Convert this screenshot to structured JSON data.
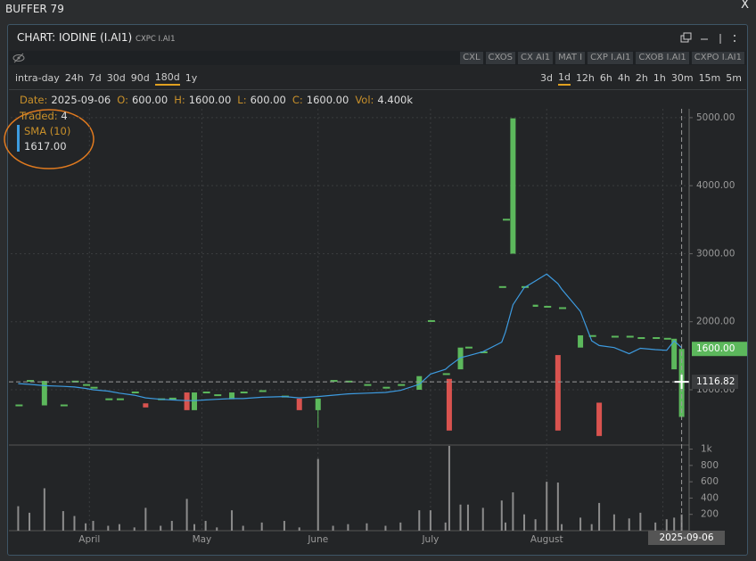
{
  "window": {
    "title": "BUFFER 79",
    "close": "X"
  },
  "panel": {
    "title": "CHART: IODINE (I.AI1)",
    "subtitle": "CXPC I.AI1"
  },
  "toolbar": {
    "buttons": [
      "CXL",
      "CXOS",
      "CX AI1",
      "MAT I",
      "CXP I.AI1",
      "CXOB I.AI1",
      "CXPO I.AI1"
    ]
  },
  "ranges": {
    "items": [
      "intra-day",
      "24h",
      "7d",
      "30d",
      "90d",
      "180d",
      "1y"
    ],
    "active": 5
  },
  "intervals": {
    "items": [
      "3d",
      "1d",
      "12h",
      "6h",
      "4h",
      "2h",
      "1h",
      "30m",
      "15m",
      "5m"
    ],
    "active": 1
  },
  "info": {
    "fields": [
      {
        "label": "Date:",
        "value": "2025-09-06"
      },
      {
        "label": "O:",
        "value": "600.00"
      },
      {
        "label": "H:",
        "value": "1600.00"
      },
      {
        "label": "L:",
        "value": "600.00"
      },
      {
        "label": "C:",
        "value": "1600.00"
      },
      {
        "label": "Vol:",
        "value": "4.400k"
      }
    ],
    "traded": {
      "label": "Traded:",
      "value": "4"
    }
  },
  "chart_data": {
    "type": "candlestick",
    "x": [
      "2025-03-13",
      "2025-03-16",
      "2025-03-20",
      "2025-03-25",
      "2025-03-28",
      "2025-03-31",
      "2025-04-02",
      "2025-04-06",
      "2025-04-09",
      "2025-04-13",
      "2025-04-16",
      "2025-04-20",
      "2025-04-23",
      "2025-04-27",
      "2025-04-29",
      "2025-05-02",
      "2025-05-05",
      "2025-05-09",
      "2025-05-12",
      "2025-05-17",
      "2025-05-23",
      "2025-05-27",
      "2025-06-01",
      "2025-06-05",
      "2025-06-09",
      "2025-06-14",
      "2025-06-19",
      "2025-06-23",
      "2025-06-28",
      "2025-07-01",
      "2025-07-05",
      "2025-07-06",
      "2025-07-09",
      "2025-07-11",
      "2025-07-15",
      "2025-07-20",
      "2025-07-21",
      "2025-07-23",
      "2025-07-26",
      "2025-07-29",
      "2025-08-01",
      "2025-08-04",
      "2025-08-05",
      "2025-08-10",
      "2025-08-13",
      "2025-08-15",
      "2025-08-19",
      "2025-08-23",
      "2025-08-26",
      "2025-08-30",
      "2025-09-02",
      "2025-09-04",
      "2025-09-06"
    ],
    "open": [
      770,
      1130,
      770,
      770,
      1120,
      1070,
      1030,
      860,
      860,
      960,
      800,
      860,
      870,
      960,
      700,
      960,
      920,
      860,
      960,
      980,
      900,
      870,
      700,
      1130,
      1120,
      1070,
      1030,
      1070,
      1000,
      2010,
      1230,
      1160,
      1300,
      1620,
      1550,
      2510,
      3500,
      3000,
      2510,
      2220,
      2220,
      1510,
      2200,
      1620,
      1790,
      810,
      1780,
      1780,
      1760,
      1760,
      1750,
      1300,
      600
    ],
    "high": [
      770,
      1130,
      1130,
      770,
      1120,
      1070,
      1030,
      860,
      860,
      960,
      800,
      860,
      870,
      960,
      960,
      960,
      920,
      960,
      960,
      980,
      900,
      870,
      870,
      1130,
      1120,
      1070,
      1030,
      1070,
      1200,
      2010,
      1230,
      1160,
      1620,
      1620,
      1550,
      2510,
      3500,
      4990,
      2510,
      2250,
      2220,
      1510,
      2200,
      1800,
      1790,
      810,
      1780,
      1780,
      1760,
      1760,
      1750,
      1750,
      1600
    ],
    "low": [
      770,
      1130,
      770,
      770,
      1120,
      1070,
      1030,
      860,
      860,
      960,
      740,
      860,
      870,
      700,
      700,
      960,
      920,
      860,
      960,
      980,
      900,
      700,
      440,
      1130,
      1120,
      1070,
      1030,
      1070,
      1000,
      2010,
      1230,
      400,
      1300,
      1620,
      1550,
      2510,
      3500,
      3000,
      2510,
      2220,
      2220,
      400,
      2200,
      1620,
      1790,
      320,
      1780,
      1780,
      1760,
      1760,
      1750,
      1300,
      600
    ],
    "close": [
      770,
      1130,
      1130,
      770,
      1120,
      1070,
      1030,
      860,
      860,
      960,
      740,
      860,
      870,
      700,
      960,
      960,
      920,
      960,
      960,
      980,
      900,
      700,
      870,
      1130,
      1120,
      1070,
      1030,
      1070,
      1200,
      2010,
      1230,
      400,
      1620,
      1620,
      1550,
      2510,
      3500,
      4990,
      2510,
      2250,
      2220,
      400,
      2200,
      1800,
      1790,
      320,
      1780,
      1780,
      1760,
      1760,
      1750,
      1750,
      1600
    ],
    "up_color": "#5cb85c",
    "down_color": "#d9534f",
    "sma": {
      "name": "SMA (10)",
      "color": "#3d9be0",
      "legend_value": "1617.00",
      "values": [
        1090,
        1080,
        1060,
        1050,
        1040,
        1020,
        1000,
        980,
        950,
        920,
        880,
        860,
        850,
        840,
        840,
        850,
        860,
        870,
        870,
        890,
        900,
        880,
        900,
        920,
        940,
        950,
        960,
        990,
        1080,
        1230,
        1300,
        1350,
        1470,
        1500,
        1560,
        1700,
        1850,
        2250,
        2500,
        2600,
        2700,
        2560,
        2480,
        2150,
        1720,
        1650,
        1620,
        1530,
        1610,
        1590,
        1580,
        1720,
        1617
      ]
    },
    "volume": {
      "color": "#8c8c8c",
      "ylim": [
        0,
        1050
      ],
      "yticks": [
        {
          "value": 1000,
          "label": "1k"
        },
        800,
        600,
        400,
        200
      ],
      "values": [
        300,
        220,
        520,
        240,
        180,
        90,
        120,
        60,
        80,
        40,
        280,
        60,
        120,
        390,
        80,
        120,
        40,
        250,
        60,
        100,
        120,
        40,
        880,
        60,
        80,
        90,
        60,
        100,
        250,
        250,
        100,
        1040,
        320,
        320,
        280,
        370,
        100,
        470,
        200,
        140,
        600,
        590,
        80,
        160,
        80,
        340,
        200,
        150,
        220,
        100,
        140,
        160,
        200
      ]
    },
    "xlim": [
      "2025-03-11",
      "2025-09-08"
    ],
    "xticks": [
      {
        "value": "2025-04-01",
        "label": "April"
      },
      {
        "value": "2025-05-01",
        "label": "May"
      },
      {
        "value": "2025-06-01",
        "label": "June"
      },
      {
        "value": "2025-07-01",
        "label": "July"
      },
      {
        "value": "2025-08-01",
        "label": "August"
      },
      {
        "value": "2025-09-01",
        "label": "Sep"
      }
    ],
    "ylim": [
      200,
      5130
    ],
    "yticks": [
      {
        "value": 5000,
        "label": "5000.00"
      },
      {
        "value": 4000,
        "label": "4000.00"
      },
      {
        "value": 3000,
        "label": "3000.00"
      },
      {
        "value": 2000,
        "label": "2000.00"
      },
      {
        "value": 1000,
        "label": "1000.00"
      }
    ],
    "grid": true,
    "last_price": {
      "value": 1600,
      "label": "1600.00"
    },
    "crosshair": {
      "x": "2025-09-06",
      "y": 1116.82
    }
  }
}
